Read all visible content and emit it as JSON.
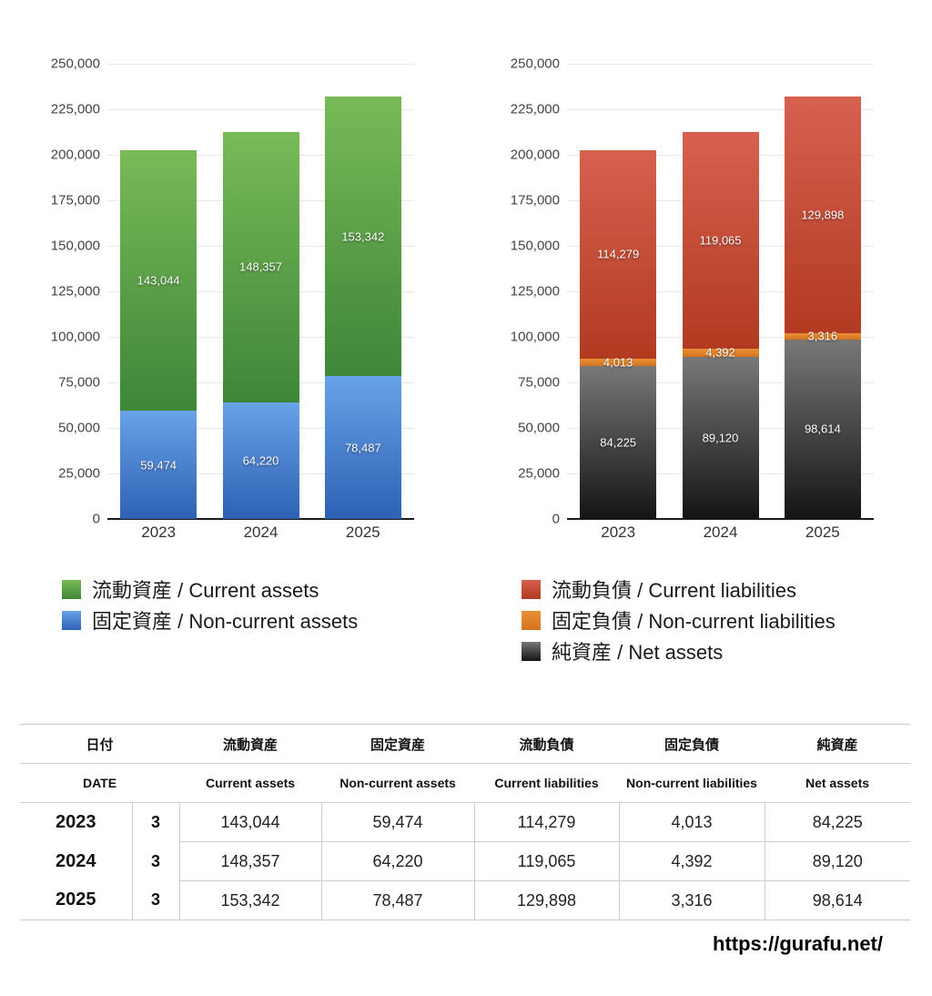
{
  "page": {
    "background": "#ffffff",
    "watermark": "https://gurafu.net/"
  },
  "chart_data": [
    {
      "type": "bar",
      "stacked": true,
      "title": "",
      "categories": [
        "2023",
        "2024",
        "2025"
      ],
      "ylim": [
        0,
        250000
      ],
      "ytick_step": 25000,
      "grid": true,
      "legend_position": "bottom-left",
      "series": [
        {
          "name": "固定資産 / Non-current assets",
          "values": [
            59474,
            64220,
            78487
          ],
          "color_top": "#68a2e8",
          "color_bottom": "#2e61b4"
        },
        {
          "name": "流動資産 / Current assets",
          "values": [
            143044,
            148357,
            153342
          ],
          "color_top": "#79ba58",
          "color_bottom": "#3e8639"
        }
      ],
      "legend": [
        {
          "label": "流動資産 / Current assets",
          "color_top": "#79ba58",
          "color_bottom": "#3e8639"
        },
        {
          "label": "固定資産 / Non-current assets",
          "color_top": "#68a2e8",
          "color_bottom": "#2e61b4"
        }
      ]
    },
    {
      "type": "bar",
      "stacked": true,
      "title": "",
      "categories": [
        "2023",
        "2024",
        "2025"
      ],
      "ylim": [
        0,
        250000
      ],
      "ytick_step": 25000,
      "grid": true,
      "legend_position": "bottom-left",
      "series": [
        {
          "name": "純資産 / Net assets",
          "values": [
            84225,
            89120,
            98614
          ],
          "color_top": "#787878",
          "color_bottom": "#141414"
        },
        {
          "name": "固定負債 / Non-current liabilities",
          "values": [
            4013,
            4392,
            3316
          ],
          "color_top": "#ea9138",
          "color_bottom": "#d4731d"
        },
        {
          "name": "流動負債 / Current liabilities",
          "values": [
            114279,
            119065,
            129898
          ],
          "color_top": "#d7614f",
          "color_bottom": "#b23a21"
        }
      ],
      "legend": [
        {
          "label": "流動負債 / Current liabilities",
          "color_top": "#d7614f",
          "color_bottom": "#b23a21"
        },
        {
          "label": "固定負債 / Non-current liabilities",
          "color_top": "#ea9138",
          "color_bottom": "#d4731d"
        },
        {
          "label": "純資産 / Net assets",
          "color_top": "#787878",
          "color_bottom": "#141414"
        }
      ]
    }
  ],
  "table": {
    "header_row1": [
      "日付",
      "流動資産",
      "固定資産",
      "流動負債",
      "固定負債",
      "純資産"
    ],
    "header_row2": [
      "DATE",
      "Current assets",
      "Non-current assets",
      "Current liabilities",
      "Non-current liabilities",
      "Net assets"
    ],
    "rows": [
      {
        "year": "2023",
        "month": "3",
        "values": [
          "143,044",
          "59,474",
          "114,279",
          "4,013",
          "84,225"
        ]
      },
      {
        "year": "2024",
        "month": "3",
        "values": [
          "148,357",
          "64,220",
          "119,065",
          "4,392",
          "89,120"
        ]
      },
      {
        "year": "2025",
        "month": "3",
        "values": [
          "153,342",
          "78,487",
          "129,898",
          "3,316",
          "98,614"
        ]
      }
    ]
  }
}
